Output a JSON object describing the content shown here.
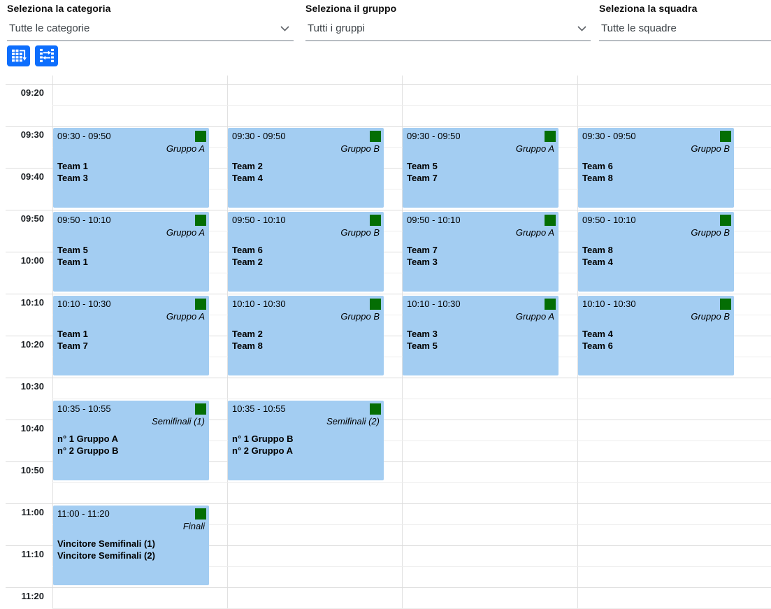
{
  "filters": [
    {
      "label": "Seleziona la categoria",
      "value": "Tutte le categorie",
      "has_chevron": true
    },
    {
      "label": "Seleziona il gruppo",
      "value": "Tutti i gruppi",
      "has_chevron": true
    },
    {
      "label": "Seleziona la squadra",
      "value": "Tutte le squadre",
      "has_chevron": false
    }
  ],
  "toolbar": {
    "buttons": [
      {
        "name": "schedule-grid-view",
        "icon": "table-arrow-down-icon"
      },
      {
        "name": "matches-swap-view",
        "icon": "swap-columns-icon"
      }
    ]
  },
  "calendar": {
    "slot_labels": [
      "09:20",
      "09:30",
      "09:40",
      "09:50",
      "10:00",
      "10:10",
      "10:20",
      "10:30",
      "10:40",
      "10:50",
      "11:00",
      "11:10",
      "11:20"
    ],
    "events": [
      {
        "col": 0,
        "start": "09:30",
        "end": "09:50",
        "time": "09:30 - 09:50",
        "tag": "Gruppo A",
        "participants": [
          "Team 1",
          "Team 3"
        ]
      },
      {
        "col": 1,
        "start": "09:30",
        "end": "09:50",
        "time": "09:30 - 09:50",
        "tag": "Gruppo B",
        "participants": [
          "Team 2",
          "Team 4"
        ]
      },
      {
        "col": 2,
        "start": "09:30",
        "end": "09:50",
        "time": "09:30 - 09:50",
        "tag": "Gruppo A",
        "participants": [
          "Team 5",
          "Team 7"
        ]
      },
      {
        "col": 3,
        "start": "09:30",
        "end": "09:50",
        "time": "09:30 - 09:50",
        "tag": "Gruppo B",
        "participants": [
          "Team 6",
          "Team 8"
        ]
      },
      {
        "col": 0,
        "start": "09:50",
        "end": "10:10",
        "time": "09:50 - 10:10",
        "tag": "Gruppo A",
        "participants": [
          "Team 5",
          "Team 1"
        ]
      },
      {
        "col": 1,
        "start": "09:50",
        "end": "10:10",
        "time": "09:50 - 10:10",
        "tag": "Gruppo B",
        "participants": [
          "Team 6",
          "Team 2"
        ]
      },
      {
        "col": 2,
        "start": "09:50",
        "end": "10:10",
        "time": "09:50 - 10:10",
        "tag": "Gruppo A",
        "participants": [
          "Team 7",
          "Team 3"
        ]
      },
      {
        "col": 3,
        "start": "09:50",
        "end": "10:10",
        "time": "09:50 - 10:10",
        "tag": "Gruppo B",
        "participants": [
          "Team 8",
          "Team 4"
        ]
      },
      {
        "col": 0,
        "start": "10:10",
        "end": "10:30",
        "time": "10:10 - 10:30",
        "tag": "Gruppo A",
        "participants": [
          "Team 1",
          "Team 7"
        ]
      },
      {
        "col": 1,
        "start": "10:10",
        "end": "10:30",
        "time": "10:10 - 10:30",
        "tag": "Gruppo B",
        "participants": [
          "Team 2",
          "Team 8"
        ]
      },
      {
        "col": 2,
        "start": "10:10",
        "end": "10:30",
        "time": "10:10 - 10:30",
        "tag": "Gruppo A",
        "participants": [
          "Team 3",
          "Team 5"
        ]
      },
      {
        "col": 3,
        "start": "10:10",
        "end": "10:30",
        "time": "10:10 - 10:30",
        "tag": "Gruppo B",
        "participants": [
          "Team 4",
          "Team 6"
        ]
      },
      {
        "col": 0,
        "start": "10:35",
        "end": "10:55",
        "time": "10:35 - 10:55",
        "tag": "Semifinali (1)",
        "participants": [
          "n° 1 Gruppo A",
          "n° 2 Gruppo B"
        ]
      },
      {
        "col": 1,
        "start": "10:35",
        "end": "10:55",
        "time": "10:35 - 10:55",
        "tag": "Semifinali (2)",
        "participants": [
          "n° 1 Gruppo B",
          "n° 2 Gruppo A"
        ]
      },
      {
        "col": 0,
        "start": "11:00",
        "end": "11:20",
        "time": "11:00 - 11:20",
        "tag": "Finali",
        "participants": [
          "Vincitore Semifinali (1)",
          "Vincitore Semifinali (2)"
        ]
      }
    ]
  },
  "colors": {
    "event_bg": "#a3cdf2",
    "event_marker": "#046e04",
    "button": "#0d6efd"
  }
}
